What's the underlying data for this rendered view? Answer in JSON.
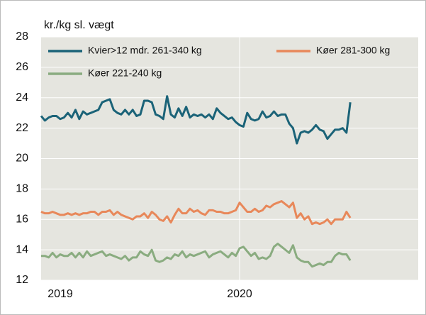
{
  "chart_data": {
    "type": "line",
    "y_label": "kr./kg sl. vægt",
    "categories": [
      "2019",
      null,
      null,
      null,
      null,
      null,
      null,
      null,
      null,
      null,
      null,
      null,
      null,
      null,
      null,
      null,
      null,
      null,
      null,
      null,
      null,
      null,
      null,
      null,
      null,
      null,
      null,
      null,
      null,
      null,
      null,
      null,
      null,
      null,
      null,
      null,
      null,
      null,
      null,
      null,
      null,
      null,
      null,
      null,
      null,
      null,
      null,
      null,
      null,
      null,
      null,
      null,
      "2020",
      null,
      null,
      null,
      null,
      null,
      null,
      null,
      null,
      null,
      null,
      null,
      null,
      null,
      null,
      null,
      null,
      null,
      null,
      null,
      null,
      null,
      null,
      null,
      null,
      null,
      null,
      null,
      null,
      null
    ],
    "series": [
      {
        "name": "Kvier>12 mdr. 261-340 kg",
        "color": "#1b6378",
        "values": [
          22.8,
          22.5,
          22.7,
          22.8,
          22.8,
          22.6,
          22.7,
          23.0,
          22.7,
          23.2,
          22.6,
          23.1,
          22.9,
          23.0,
          23.1,
          23.2,
          23.7,
          23.8,
          23.9,
          23.2,
          23.0,
          22.9,
          23.2,
          22.9,
          23.2,
          22.8,
          22.9,
          23.8,
          23.8,
          23.7,
          22.9,
          22.8,
          22.6,
          24.1,
          22.9,
          22.7,
          23.3,
          22.8,
          23.4,
          22.7,
          22.9,
          22.8,
          22.9,
          22.7,
          22.9,
          22.6,
          23.3,
          23.0,
          22.8,
          22.6,
          22.7,
          22.4,
          22.2,
          22.1,
          23.0,
          22.6,
          22.5,
          22.6,
          23.1,
          22.7,
          22.8,
          23.1,
          22.8,
          22.9,
          22.9,
          22.3,
          22.0,
          21.0,
          21.7,
          21.8,
          21.7,
          21.9,
          22.2,
          21.9,
          21.8,
          21.3,
          21.6,
          21.9,
          21.9,
          22.0,
          21.7,
          23.7
        ]
      },
      {
        "name": "Køer 281-300 kg",
        "color": "#e8885a",
        "values": [
          16.5,
          16.4,
          16.4,
          16.5,
          16.4,
          16.3,
          16.3,
          16.4,
          16.3,
          16.4,
          16.3,
          16.4,
          16.4,
          16.5,
          16.5,
          16.3,
          16.5,
          16.5,
          16.6,
          16.3,
          16.5,
          16.3,
          16.2,
          16.1,
          16.0,
          16.2,
          16.2,
          16.4,
          16.1,
          16.5,
          16.3,
          16.0,
          15.9,
          16.2,
          15.8,
          16.3,
          16.7,
          16.4,
          16.4,
          16.7,
          16.5,
          16.6,
          16.4,
          16.3,
          16.6,
          16.6,
          16.5,
          16.5,
          16.4,
          16.4,
          16.5,
          16.6,
          17.1,
          16.8,
          16.5,
          16.5,
          16.7,
          16.5,
          16.6,
          16.9,
          16.8,
          17.0,
          17.1,
          17.2,
          17.0,
          16.8,
          17.1,
          16.1,
          16.4,
          16.0,
          16.2,
          15.7,
          15.8,
          15.7,
          15.8,
          16.0,
          15.7,
          16.0,
          16.0,
          16.0,
          16.5,
          16.1
        ]
      },
      {
        "name": "Køer 221-240 kg",
        "color": "#8aac80",
        "values": [
          13.6,
          13.6,
          13.5,
          13.8,
          13.5,
          13.7,
          13.6,
          13.6,
          13.8,
          13.5,
          13.8,
          13.5,
          13.9,
          13.6,
          13.7,
          13.8,
          13.9,
          13.6,
          13.7,
          13.6,
          13.5,
          13.4,
          13.6,
          13.3,
          13.5,
          13.5,
          13.9,
          13.7,
          13.6,
          14.0,
          13.3,
          13.2,
          13.3,
          13.5,
          13.4,
          13.7,
          13.6,
          13.9,
          13.5,
          13.7,
          13.6,
          13.7,
          13.8,
          13.9,
          13.5,
          13.7,
          13.8,
          13.9,
          13.7,
          13.5,
          13.8,
          13.6,
          14.1,
          14.2,
          13.9,
          13.6,
          13.8,
          13.4,
          13.5,
          13.4,
          13.6,
          14.2,
          14.4,
          14.2,
          14.0,
          13.8,
          14.3,
          13.5,
          13.3,
          13.2,
          13.2,
          12.9,
          13.0,
          13.1,
          13.0,
          13.2,
          13.2,
          13.6,
          13.8,
          13.7,
          13.7,
          13.3
        ]
      }
    ],
    "ylim": [
      12,
      28
    ],
    "yticks": [
      12,
      14,
      16,
      18,
      20,
      22,
      24,
      26,
      28
    ],
    "grid": true,
    "legend": "top-left"
  }
}
